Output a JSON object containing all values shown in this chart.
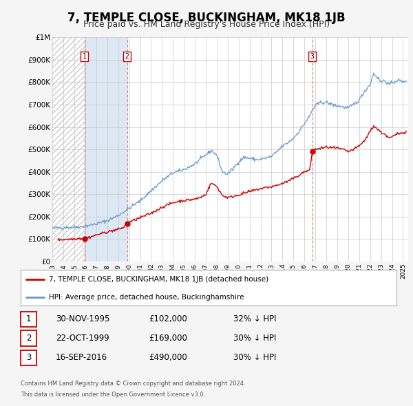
{
  "title": "7, TEMPLE CLOSE, BUCKINGHAM, MK18 1JB",
  "subtitle": "Price paid vs. HM Land Registry's House Price Index (HPI)",
  "legend_label_red": "7, TEMPLE CLOSE, BUCKINGHAM, MK18 1JB (detached house)",
  "legend_label_blue": "HPI: Average price, detached house, Buckinghamshire",
  "transactions": [
    {
      "num": 1,
      "date": "30-NOV-1995",
      "year": 1995.92,
      "price": 102000,
      "pct": "32% ↓ HPI"
    },
    {
      "num": 2,
      "date": "22-OCT-1999",
      "year": 1999.81,
      "price": 169000,
      "pct": "30% ↓ HPI"
    },
    {
      "num": 3,
      "date": "16-SEP-2016",
      "year": 2016.71,
      "price": 490000,
      "pct": "30% ↓ HPI"
    }
  ],
  "footer_line1": "Contains HM Land Registry data © Crown copyright and database right 2024.",
  "footer_line2": "This data is licensed under the Open Government Licence v3.0.",
  "ylim": [
    0,
    1000000
  ],
  "yticks": [
    0,
    100000,
    200000,
    300000,
    400000,
    500000,
    600000,
    700000,
    800000,
    900000,
    1000000
  ],
  "ytick_labels": [
    "£0",
    "£100K",
    "£200K",
    "£300K",
    "£400K",
    "£500K",
    "£600K",
    "£700K",
    "£800K",
    "£900K",
    "£1M"
  ],
  "xlim_start": 1993.0,
  "xlim_end": 2025.5,
  "xtick_years": [
    1993,
    1994,
    1995,
    1996,
    1997,
    1998,
    1999,
    2000,
    2001,
    2002,
    2003,
    2004,
    2005,
    2006,
    2007,
    2008,
    2009,
    2010,
    2011,
    2012,
    2013,
    2014,
    2015,
    2016,
    2017,
    2018,
    2019,
    2020,
    2021,
    2022,
    2023,
    2024,
    2025
  ],
  "bg_color": "#f5f5f5",
  "plot_bg_color": "#ffffff",
  "grid_color": "#c8c8c8",
  "red_color": "#cc0000",
  "blue_color": "#6699cc",
  "vline_color": "#dd8888",
  "box_color": "#cc0000",
  "title_fontsize": 12,
  "subtitle_fontsize": 9,
  "hatch_color": "#cccccc",
  "shade_color": "#dde8f5"
}
